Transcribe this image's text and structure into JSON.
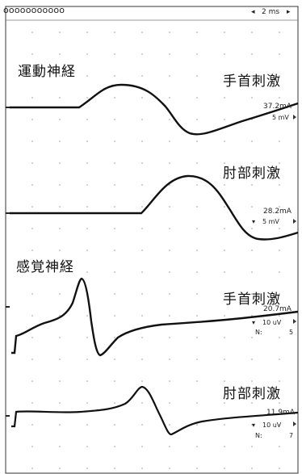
{
  "header": {
    "sweep": "2 ms",
    "pattern": "ooooooooooo"
  },
  "sections": [
    {
      "title": "運動神経"
    },
    {
      "title": "感覚神経"
    }
  ],
  "traces": [
    {
      "site": "手首刺激",
      "current": "37.2mA",
      "gain": "5 mV",
      "n_label": "",
      "n_value": ""
    },
    {
      "site": "肘部刺激",
      "current": "28.2mA",
      "gain": "5 mV",
      "n_label": "",
      "n_value": ""
    },
    {
      "site": "手首刺激",
      "current": "20.7mA",
      "gain": "10 uV",
      "n_label": "N:",
      "n_value": "5"
    },
    {
      "site": "肘部刺激",
      "current": "11.9mA",
      "gain": "10 uV",
      "n_label": "N:",
      "n_value": "7"
    }
  ],
  "colors": {
    "trace": "#111111",
    "grid": "#9a9a9a",
    "frame": "#333333"
  }
}
